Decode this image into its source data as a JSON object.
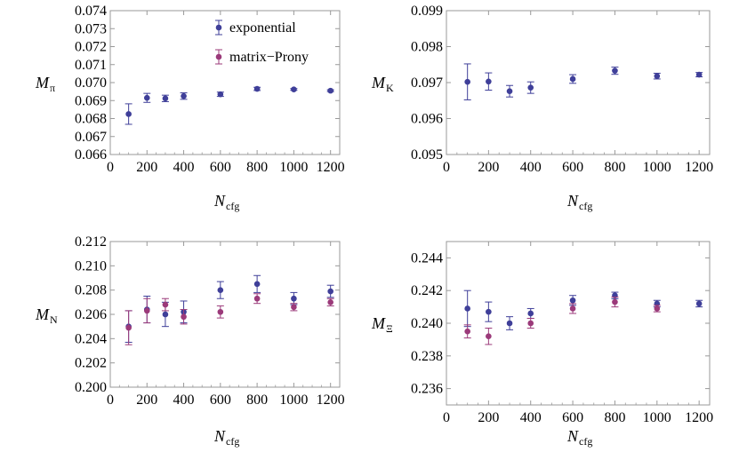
{
  "colors": {
    "exponential": "#3f3f99",
    "matrix_prony": "#9b3a7a",
    "frame": "#999999"
  },
  "chart_data": [
    {
      "type": "scatter",
      "panel": "top-left",
      "ylabel_main": "M",
      "ylabel_sub": "π",
      "xlabel_main": "N",
      "xlabel_sub": "cfg",
      "xlim": [
        0,
        1250
      ],
      "ylim": [
        0.066,
        0.074
      ],
      "xticks": [
        0,
        200,
        400,
        600,
        800,
        1000,
        1200
      ],
      "xtick_labels": [
        "0",
        "200",
        "400",
        "600",
        "800",
        "1000",
        "1200"
      ],
      "yticks": [
        0.066,
        0.067,
        0.068,
        0.069,
        0.07,
        0.071,
        0.072,
        0.073,
        0.074
      ],
      "ytick_labels": [
        "0.066",
        "0.067",
        "0.068",
        "0.069",
        "0.070",
        "0.071",
        "0.072",
        "0.073",
        "0.074"
      ],
      "legend": {
        "position": "top-center",
        "entries": [
          "exponential",
          "matrix−Prony"
        ]
      },
      "series": [
        {
          "name": "exponential",
          "color_key": "exponential",
          "points": [
            {
              "x": 100,
              "y": 0.06825,
              "err": 0.00057
            },
            {
              "x": 200,
              "y": 0.06915,
              "err": 0.00025
            },
            {
              "x": 300,
              "y": 0.06912,
              "err": 0.00018
            },
            {
              "x": 400,
              "y": 0.06925,
              "err": 0.00018
            },
            {
              "x": 600,
              "y": 0.06935,
              "err": 0.00012
            },
            {
              "x": 800,
              "y": 0.06965,
              "err": 9e-05
            },
            {
              "x": 1000,
              "y": 0.06962,
              "err": 5e-05
            },
            {
              "x": 1200,
              "y": 0.06955,
              "err": 5e-05
            }
          ]
        }
      ]
    },
    {
      "type": "scatter",
      "panel": "top-right",
      "ylabel_main": "M",
      "ylabel_sub": "K",
      "xlabel_main": "N",
      "xlabel_sub": "cfg",
      "xlim": [
        0,
        1250
      ],
      "ylim": [
        0.095,
        0.099
      ],
      "xticks": [
        0,
        200,
        400,
        600,
        800,
        1000,
        1200
      ],
      "xtick_labels": [
        "0",
        "200",
        "400",
        "600",
        "800",
        "1000",
        "1200"
      ],
      "yticks": [
        0.095,
        0.096,
        0.097,
        0.098,
        0.099
      ],
      "ytick_labels": [
        "0.095",
        "0.096",
        "0.097",
        "0.098",
        "0.099"
      ],
      "series": [
        {
          "name": "exponential",
          "color_key": "exponential",
          "points": [
            {
              "x": 100,
              "y": 0.09702,
              "err": 0.0005
            },
            {
              "x": 200,
              "y": 0.09703,
              "err": 0.00024
            },
            {
              "x": 300,
              "y": 0.09676,
              "err": 0.00016
            },
            {
              "x": 400,
              "y": 0.09686,
              "err": 0.00016
            },
            {
              "x": 600,
              "y": 0.0971,
              "err": 0.00012
            },
            {
              "x": 800,
              "y": 0.09733,
              "err": 0.0001
            },
            {
              "x": 1000,
              "y": 0.09718,
              "err": 8e-05
            },
            {
              "x": 1200,
              "y": 0.09722,
              "err": 6e-05
            }
          ]
        }
      ]
    },
    {
      "type": "scatter",
      "panel": "bottom-left",
      "ylabel_main": "M",
      "ylabel_sub": "N",
      "xlabel_main": "N",
      "xlabel_sub": "cfg",
      "xlim": [
        0,
        1250
      ],
      "ylim": [
        0.2,
        0.212
      ],
      "xticks": [
        0,
        200,
        400,
        600,
        800,
        1000,
        1200
      ],
      "xtick_labels": [
        "0",
        "200",
        "400",
        "600",
        "800",
        "1000",
        "1200"
      ],
      "yticks": [
        0.2,
        0.202,
        0.204,
        0.206,
        0.208,
        0.21,
        0.212
      ],
      "ytick_labels": [
        "0.200",
        "0.202",
        "0.204",
        "0.206",
        "0.208",
        "0.210",
        "0.212"
      ],
      "series": [
        {
          "name": "exponential",
          "color_key": "exponential",
          "points": [
            {
              "x": 100,
              "y": 0.205,
              "err": 0.0013
            },
            {
              "x": 200,
              "y": 0.2064,
              "err": 0.0011
            },
            {
              "x": 300,
              "y": 0.206,
              "err": 0.001
            },
            {
              "x": 400,
              "y": 0.2062,
              "err": 0.0009
            },
            {
              "x": 600,
              "y": 0.208,
              "err": 0.0007
            },
            {
              "x": 800,
              "y": 0.2085,
              "err": 0.0007
            },
            {
              "x": 1000,
              "y": 0.2073,
              "err": 0.0005
            },
            {
              "x": 1200,
              "y": 0.2079,
              "err": 0.0005
            }
          ]
        },
        {
          "name": "matrix−Prony",
          "color_key": "matrix_prony",
          "points": [
            {
              "x": 100,
              "y": 0.2049,
              "err": 0.0014
            },
            {
              "x": 200,
              "y": 0.2063,
              "err": 0.001
            },
            {
              "x": 300,
              "y": 0.2068,
              "err": 0.0005
            },
            {
              "x": 400,
              "y": 0.2058,
              "err": 0.0006
            },
            {
              "x": 600,
              "y": 0.2062,
              "err": 0.0005
            },
            {
              "x": 800,
              "y": 0.2073,
              "err": 0.0004
            },
            {
              "x": 1000,
              "y": 0.2066,
              "err": 0.0003
            },
            {
              "x": 1200,
              "y": 0.207,
              "err": 0.0003
            }
          ]
        }
      ]
    },
    {
      "type": "scatter",
      "panel": "bottom-right",
      "ylabel_main": "M",
      "ylabel_sub": "Ξ",
      "xlabel_main": "N",
      "xlabel_sub": "cfg",
      "xlim": [
        0,
        1250
      ],
      "ylim": [
        0.235,
        0.245
      ],
      "xticks": [
        0,
        200,
        400,
        600,
        800,
        1000,
        1200
      ],
      "xtick_labels": [
        "0",
        "200",
        "400",
        "600",
        "800",
        "1000",
        "1200"
      ],
      "yticks": [
        0.236,
        0.238,
        0.24,
        0.242,
        0.244
      ],
      "ytick_labels": [
        "0.236",
        "0.238",
        "0.240",
        "0.242",
        "0.244"
      ],
      "series": [
        {
          "name": "exponential",
          "color_key": "exponential",
          "points": [
            {
              "x": 100,
              "y": 0.2409,
              "err": 0.0011
            },
            {
              "x": 200,
              "y": 0.2407,
              "err": 0.0006
            },
            {
              "x": 300,
              "y": 0.24,
              "err": 0.0004
            },
            {
              "x": 400,
              "y": 0.2406,
              "err": 0.0003
            },
            {
              "x": 600,
              "y": 0.2414,
              "err": 0.0003
            },
            {
              "x": 800,
              "y": 0.2417,
              "err": 0.0002
            },
            {
              "x": 1000,
              "y": 0.2412,
              "err": 0.0002
            },
            {
              "x": 1200,
              "y": 0.2412,
              "err": 0.0002
            }
          ]
        },
        {
          "name": "matrix−Prony",
          "color_key": "matrix_prony",
          "points": [
            {
              "x": 100,
              "y": 0.2395,
              "err": 0.0004
            },
            {
              "x": 200,
              "y": 0.2392,
              "err": 0.0005
            },
            {
              "x": 400,
              "y": 0.24,
              "err": 0.0003
            },
            {
              "x": 600,
              "y": 0.2409,
              "err": 0.0003
            },
            {
              "x": 800,
              "y": 0.2413,
              "err": 0.0003
            },
            {
              "x": 1000,
              "y": 0.2409,
              "err": 0.0002
            }
          ]
        }
      ]
    }
  ]
}
